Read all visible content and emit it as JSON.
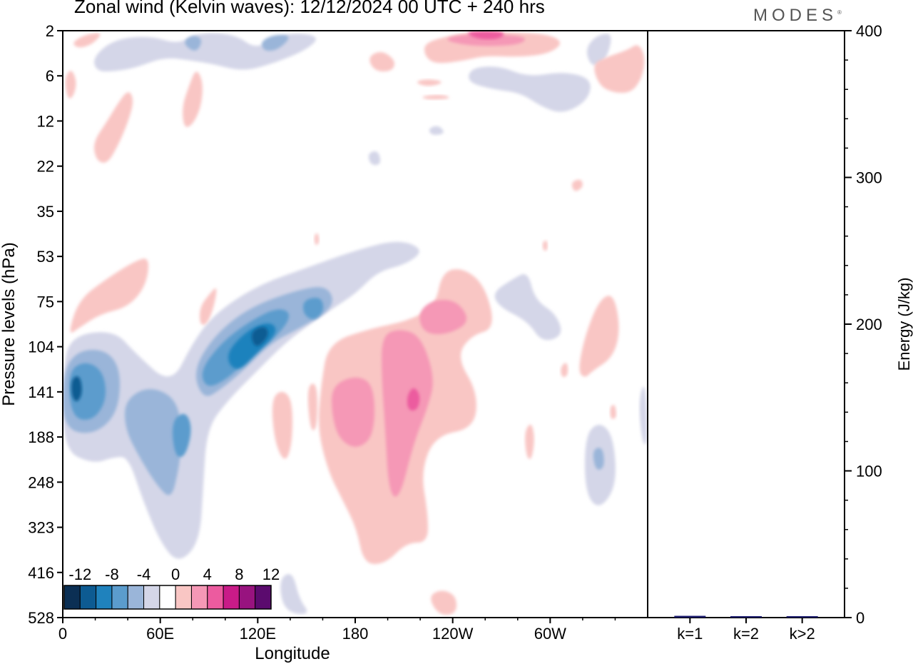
{
  "title": "Zonal wind (Kelvin waves):  12/12/2024  00 UTC  + 240 hrs",
  "brand": "MODES",
  "colors": {
    "neg": [
      "#0b2f54",
      "#0d5b92",
      "#1f82bd",
      "#5b9ccd",
      "#9ab5d9",
      "#d4d6e8"
    ],
    "zero": "#ffffff",
    "pos": [
      "#f9c6c4",
      "#f598b6",
      "#ec5b9f",
      "#c91b88",
      "#98137f",
      "#5b0b6e"
    ],
    "bar": "#1a1a6b"
  },
  "chart_data": [
    {
      "type": "heatmap",
      "title": "Zonal wind (Kelvin waves):  12/12/2024  00 UTC  + 240 hrs",
      "xlabel": "Longitude",
      "ylabel": "Pressure levels (hPa)",
      "x_ticks": [
        "0",
        "60E",
        "120E",
        "180",
        "120W",
        "60W"
      ],
      "y_ticks": [
        "2",
        "6",
        "12",
        "22",
        "35",
        "53",
        "75",
        "104",
        "141",
        "188",
        "248",
        "323",
        "416",
        "528"
      ],
      "colorbar_ticks": [
        "-12",
        "-8",
        "-4",
        "0",
        "4",
        "8",
        "12"
      ],
      "features": [
        {
          "lon": 8,
          "level": "141",
          "value": -12
        },
        {
          "lon": 106,
          "level": "104",
          "value": -10
        },
        {
          "lon": 68,
          "level": "188",
          "value": -6
        },
        {
          "lon": 200,
          "level": "104",
          "value": 6
        },
        {
          "lon": 215,
          "level": "141",
          "value": 8
        },
        {
          "lon": 196,
          "level": "248",
          "value": 4
        },
        {
          "lon": 262,
          "level": "2",
          "value": 6
        },
        {
          "lon": 330,
          "level": "248",
          "value": -6
        }
      ]
    },
    {
      "type": "bar",
      "ylabel": "Energy (J/kg)",
      "categories": [
        "k=1",
        "k=2",
        "k>2"
      ],
      "values": [
        1.2,
        0.3,
        0.8
      ],
      "y_ticks": [
        "0",
        "100",
        "200",
        "300",
        "400"
      ],
      "ylim": [
        0,
        400
      ]
    }
  ]
}
